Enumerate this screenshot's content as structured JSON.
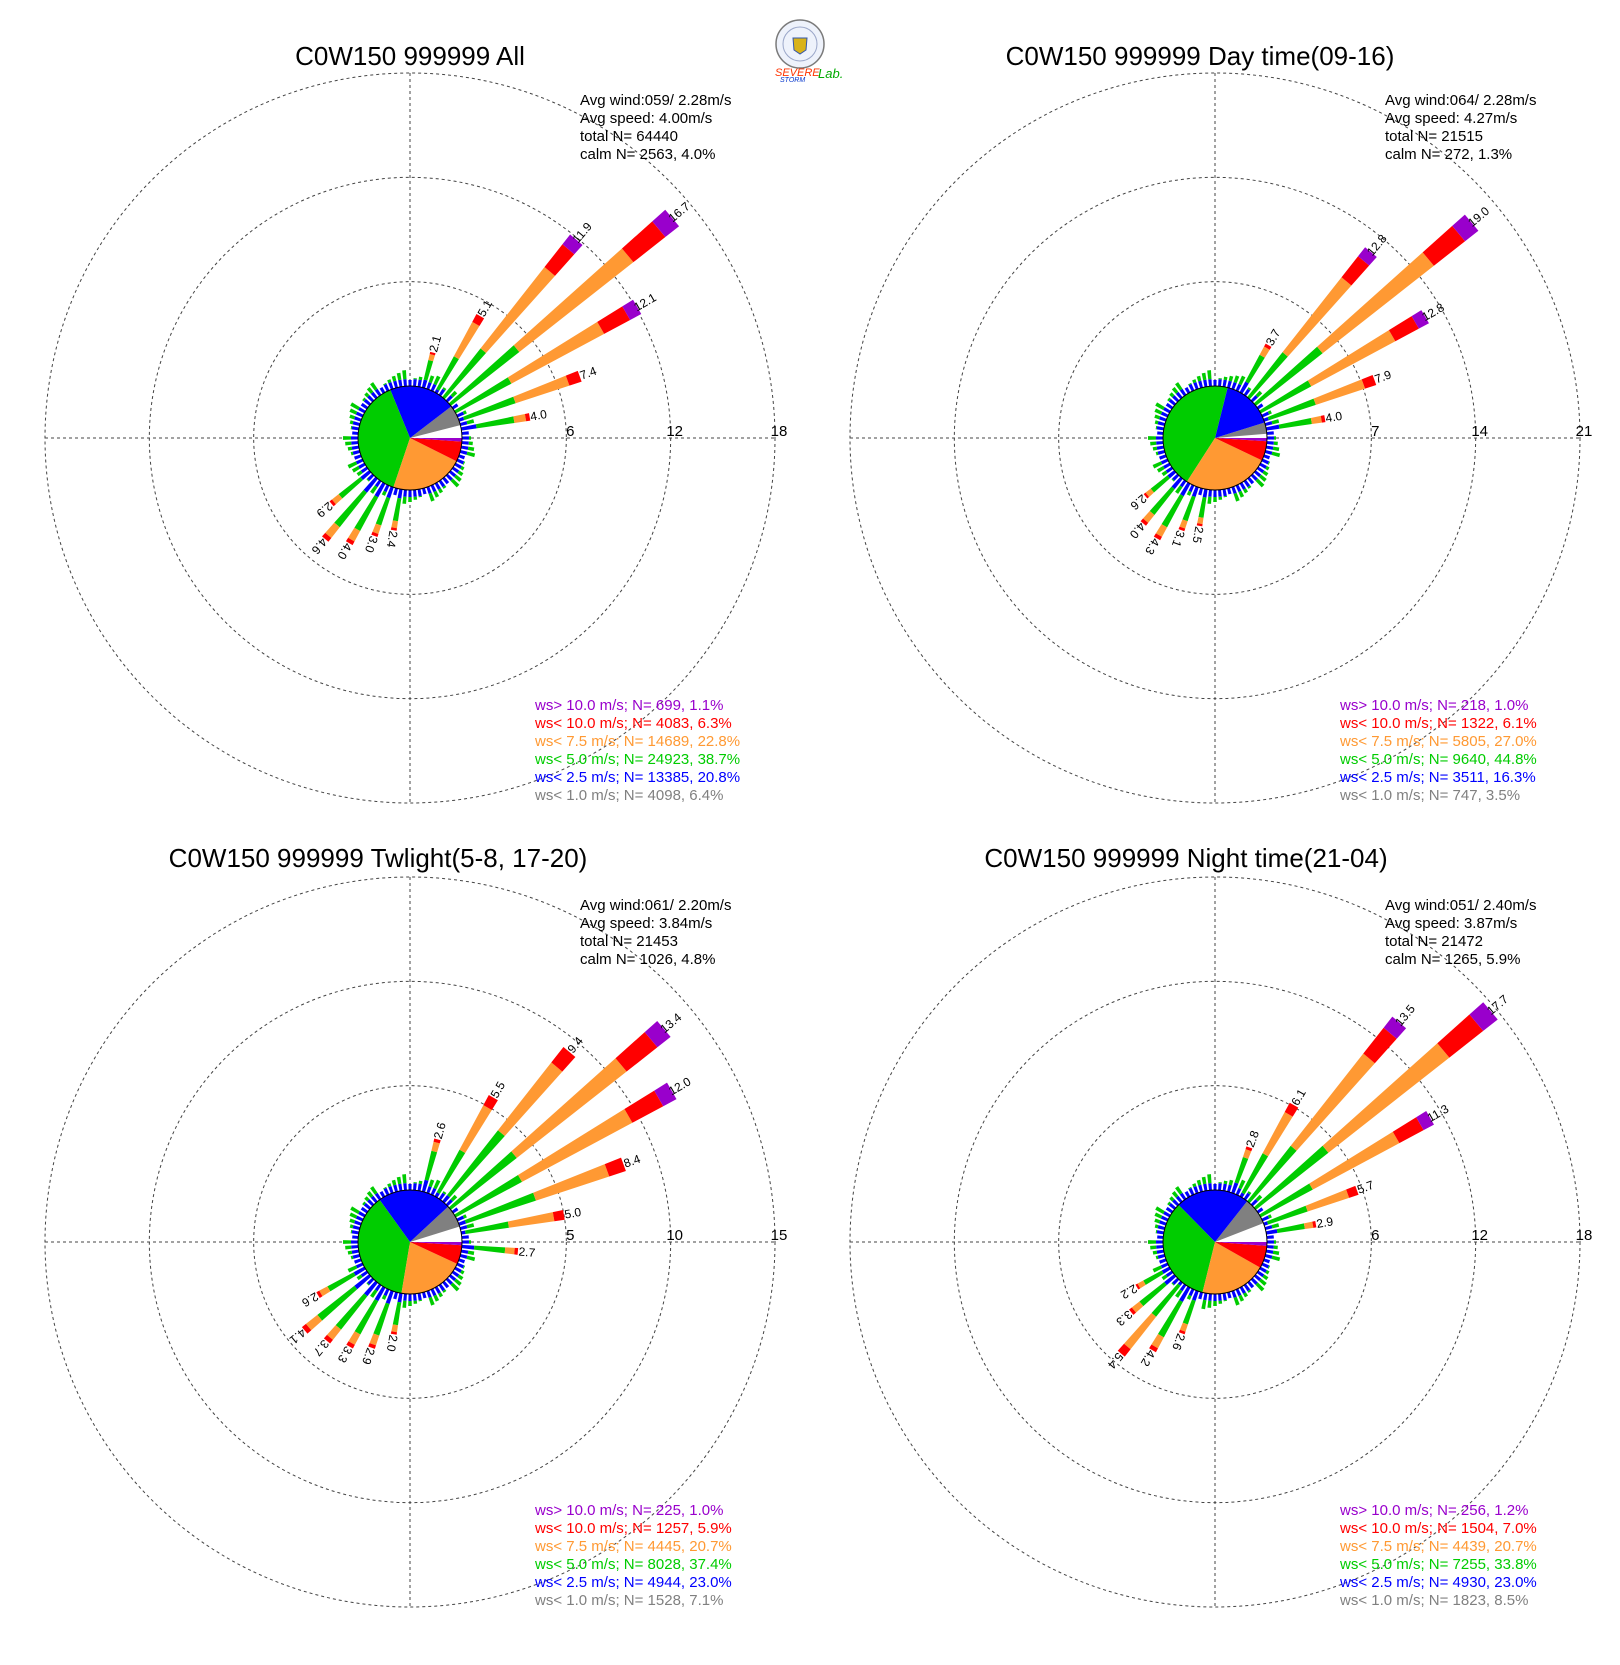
{
  "colors": {
    "ws_gt_10": "#9900cc",
    "ws_lt_10": "#ff0000",
    "ws_lt_7_5": "#ff9933",
    "ws_lt_5": "#00cc00",
    "ws_lt_2_5": "#0000ff",
    "ws_lt_1": "#808080",
    "calm": "#ffffff"
  },
  "logo": {
    "text_severe": "SEVERE",
    "text_storm": "STORM",
    "text_lab": "Lab."
  },
  "chart_data": [
    {
      "type": "wind-rose",
      "title": "C0W150 999999 All",
      "stats": [
        "Avg wind:059/ 2.28m/s",
        "Avg speed: 4.00m/s",
        "total N=       64440",
        "calm N=   2563,   4.0%"
      ],
      "rings": [
        6,
        12,
        18
      ],
      "ring_labels": [
        "6",
        "12",
        "18"
      ],
      "bars": [
        {
          "dir": 15,
          "total": 2.1
        },
        {
          "dir": 30,
          "total": 5.1
        },
        {
          "dir": 40,
          "total": 11.9
        },
        {
          "dir": 50,
          "total": 16.7
        },
        {
          "dir": 60,
          "total": 12.1
        },
        {
          "dir": 70,
          "total": 7.4
        },
        {
          "dir": 80,
          "total": 4.0
        },
        {
          "dir": 190,
          "total": 2.4
        },
        {
          "dir": 200,
          "total": 3.0
        },
        {
          "dir": 210,
          "total": 4.0
        },
        {
          "dir": 220,
          "total": 4.6
        },
        {
          "dir": 230,
          "total": 2.9
        }
      ],
      "bar_labels": [
        "2.1",
        "5.1",
        "11.9",
        "16.7",
        "12.1",
        "7.4",
        "4.0",
        "2.4",
        "3.0",
        "4.0",
        "4.6",
        "2.9"
      ],
      "pie": [
        4.0,
        6.4,
        20.8,
        38.7,
        22.8,
        6.3,
        1.1
      ],
      "legend": [
        "ws> 10.0 m/s; N=   699,  1.1%",
        "ws< 10.0 m/s; N=  4083,  6.3%",
        "ws<  7.5 m/s; N= 14689, 22.8%",
        "ws<  5.0 m/s; N= 24923, 38.7%",
        "ws<  2.5 m/s; N= 13385, 20.8%",
        "ws<  1.0 m/s; N=  4098,  6.4%"
      ]
    },
    {
      "type": "wind-rose",
      "title": "C0W150 999999 Day time(09-16)",
      "stats": [
        "Avg wind:064/ 2.28m/s",
        "Avg speed: 4.27m/s",
        "total N=       21515",
        "calm N=    272,   1.3%"
      ],
      "rings": [
        7,
        14,
        21
      ],
      "ring_labels": [
        "7",
        "14",
        "21"
      ],
      "bars": [
        {
          "dir": 30,
          "total": 3.7
        },
        {
          "dir": 40,
          "total": 12.8
        },
        {
          "dir": 50,
          "total": 19.0
        },
        {
          "dir": 60,
          "total": 12.8
        },
        {
          "dir": 70,
          "total": 7.9
        },
        {
          "dir": 80,
          "total": 4.0
        },
        {
          "dir": 190,
          "total": 2.5
        },
        {
          "dir": 200,
          "total": 3.1
        },
        {
          "dir": 210,
          "total": 4.3
        },
        {
          "dir": 220,
          "total": 4.0
        },
        {
          "dir": 230,
          "total": 2.6
        }
      ],
      "bar_labels": [
        "3.7",
        "12.8",
        "19.0",
        "12.8",
        "7.9",
        "4.0",
        "2.5",
        "3.1",
        "4.3",
        "4.0",
        "2.6"
      ],
      "pie": [
        1.3,
        3.5,
        16.3,
        44.8,
        27.0,
        6.1,
        1.0
      ],
      "legend": [
        "ws> 10.0 m/s; N=   218,  1.0%",
        "ws< 10.0 m/s; N=  1322,  6.1%",
        "ws<  7.5 m/s; N=  5805, 27.0%",
        "ws<  5.0 m/s; N=  9640, 44.8%",
        "ws<  2.5 m/s; N=  3511, 16.3%",
        "ws<  1.0 m/s; N=   747,  3.5%"
      ]
    },
    {
      "type": "wind-rose",
      "title": "C0W150 999999 Twlight(5-8, 17-20)",
      "stats": [
        "Avg wind:061/ 2.20m/s",
        "Avg speed: 3.84m/s",
        "total N=       21453",
        "calm N=   1026,   4.8%"
      ],
      "rings": [
        5,
        10,
        15
      ],
      "ring_labels": [
        "5",
        "10",
        "15"
      ],
      "bars": [
        {
          "dir": 15,
          "total": 2.6
        },
        {
          "dir": 30,
          "total": 5.5
        },
        {
          "dir": 40,
          "total": 9.4
        },
        {
          "dir": 50,
          "total": 13.4
        },
        {
          "dir": 60,
          "total": 12.0
        },
        {
          "dir": 70,
          "total": 8.4
        },
        {
          "dir": 80,
          "total": 5.0
        },
        {
          "dir": 95,
          "total": 2.7
        },
        {
          "dir": 190,
          "total": 2.0
        },
        {
          "dir": 200,
          "total": 2.9
        },
        {
          "dir": 210,
          "total": 3.3
        },
        {
          "dir": 220,
          "total": 3.7
        },
        {
          "dir": 230,
          "total": 4.1
        },
        {
          "dir": 240,
          "total": 2.6
        }
      ],
      "bar_labels": [
        "2.6",
        "5.5",
        "9.4",
        "13.4",
        "12.0",
        "8.4",
        "5.0",
        "2.7",
        "2.0",
        "2.9",
        "3.3",
        "3.7",
        "4.1",
        "2.6"
      ],
      "pie": [
        4.8,
        7.1,
        23.0,
        37.4,
        20.7,
        5.9,
        1.0
      ],
      "legend": [
        "ws> 10.0 m/s; N=   225,  1.0%",
        "ws< 10.0 m/s; N=  1257,  5.9%",
        "ws<  7.5 m/s; N=  4445, 20.7%",
        "ws<  5.0 m/s; N=  8028, 37.4%",
        "ws<  2.5 m/s; N=  4944, 23.0%",
        "ws<  1.0 m/s; N=  1528,  7.1%"
      ]
    },
    {
      "type": "wind-rose",
      "title": "C0W150 999999 Night time(21-04)",
      "stats": [
        "Avg wind:051/ 2.40m/s",
        "Avg speed: 3.87m/s",
        "total N=       21472",
        "calm N=   1265,   5.9%"
      ],
      "rings": [
        6,
        12,
        18
      ],
      "ring_labels": [
        "6",
        "12",
        "18"
      ],
      "bars": [
        {
          "dir": 20,
          "total": 2.8
        },
        {
          "dir": 30,
          "total": 6.1
        },
        {
          "dir": 40,
          "total": 13.5
        },
        {
          "dir": 50,
          "total": 17.7
        },
        {
          "dir": 60,
          "total": 11.3
        },
        {
          "dir": 70,
          "total": 5.7
        },
        {
          "dir": 80,
          "total": 2.9
        },
        {
          "dir": 200,
          "total": 2.6
        },
        {
          "dir": 210,
          "total": 4.2
        },
        {
          "dir": 220,
          "total": 5.4
        },
        {
          "dir": 230,
          "total": 3.3
        },
        {
          "dir": 240,
          "total": 2.2
        }
      ],
      "bar_labels": [
        "2.8",
        "6.1",
        "13.5",
        "17.7",
        "11.3",
        "5.7",
        "2.9",
        "2.6",
        "4.2",
        "5.4",
        "3.3",
        "2.2"
      ],
      "pie": [
        5.9,
        8.5,
        23.0,
        33.8,
        20.7,
        7.0,
        1.2
      ],
      "legend": [
        "ws> 10.0 m/s; N=   256,  1.2%",
        "ws< 10.0 m/s; N=  1504,  7.0%",
        "ws<  7.5 m/s; N=  4439, 20.7%",
        "ws<  5.0 m/s; N=  7255, 33.8%",
        "ws<  2.5 m/s; N=  4930, 23.0%",
        "ws<  1.0 m/s; N=  1823,  8.5%"
      ]
    }
  ]
}
